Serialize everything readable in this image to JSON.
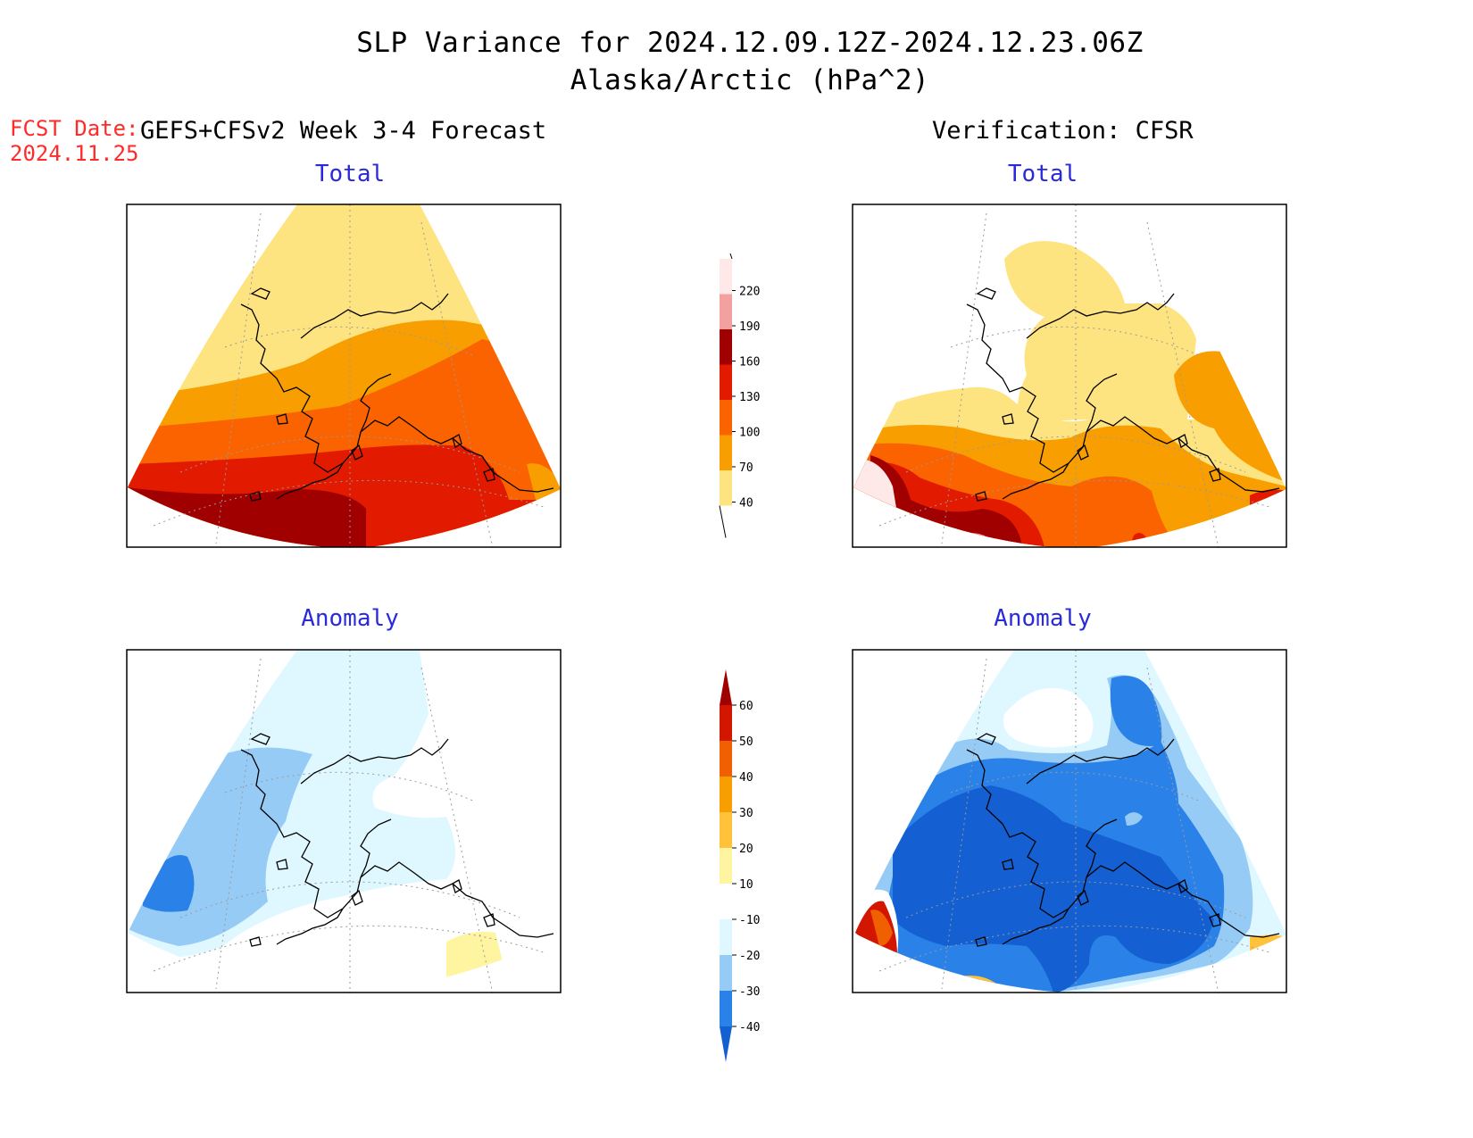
{
  "header": {
    "title_line1": "SLP Variance for 2024.12.09.12Z-2024.12.23.06Z",
    "title_line2": "Alaska/Arctic (hPa^2)",
    "fcst_label": "FCST Date:",
    "fcst_date": "2024.11.25",
    "left_column_title": "GEFS+CFSv2 Week 3-4 Forecast",
    "right_column_title": "Verification: CFSR"
  },
  "panels": {
    "top_left": "Total",
    "top_right": "Total",
    "bottom_left": "Anomaly",
    "bottom_right": "Anomaly"
  },
  "colorbars": {
    "total": {
      "labels": [
        "40",
        "70",
        "100",
        "130",
        "160",
        "190",
        "220"
      ],
      "colors": [
        "#fee480",
        "#f89e00",
        "#fb6300",
        "#e11a00",
        "#a00000",
        "#f2a0a0",
        "#ffe8e8"
      ]
    },
    "anomaly": {
      "labels": [
        "-40",
        "-30",
        "-20",
        "-10",
        "10",
        "20",
        "30",
        "40",
        "50",
        "60"
      ],
      "colors": [
        "#1460d2",
        "#2a82e8",
        "#96cbf6",
        "#dff8ff",
        "#ffffff",
        "#fff5a0",
        "#ffc23a",
        "#f89e00",
        "#f06000",
        "#d21600",
        "#a00000"
      ]
    }
  },
  "colors": {
    "coast": "#000000",
    "grid": "#9a9a9a",
    "frame": "#000000"
  }
}
